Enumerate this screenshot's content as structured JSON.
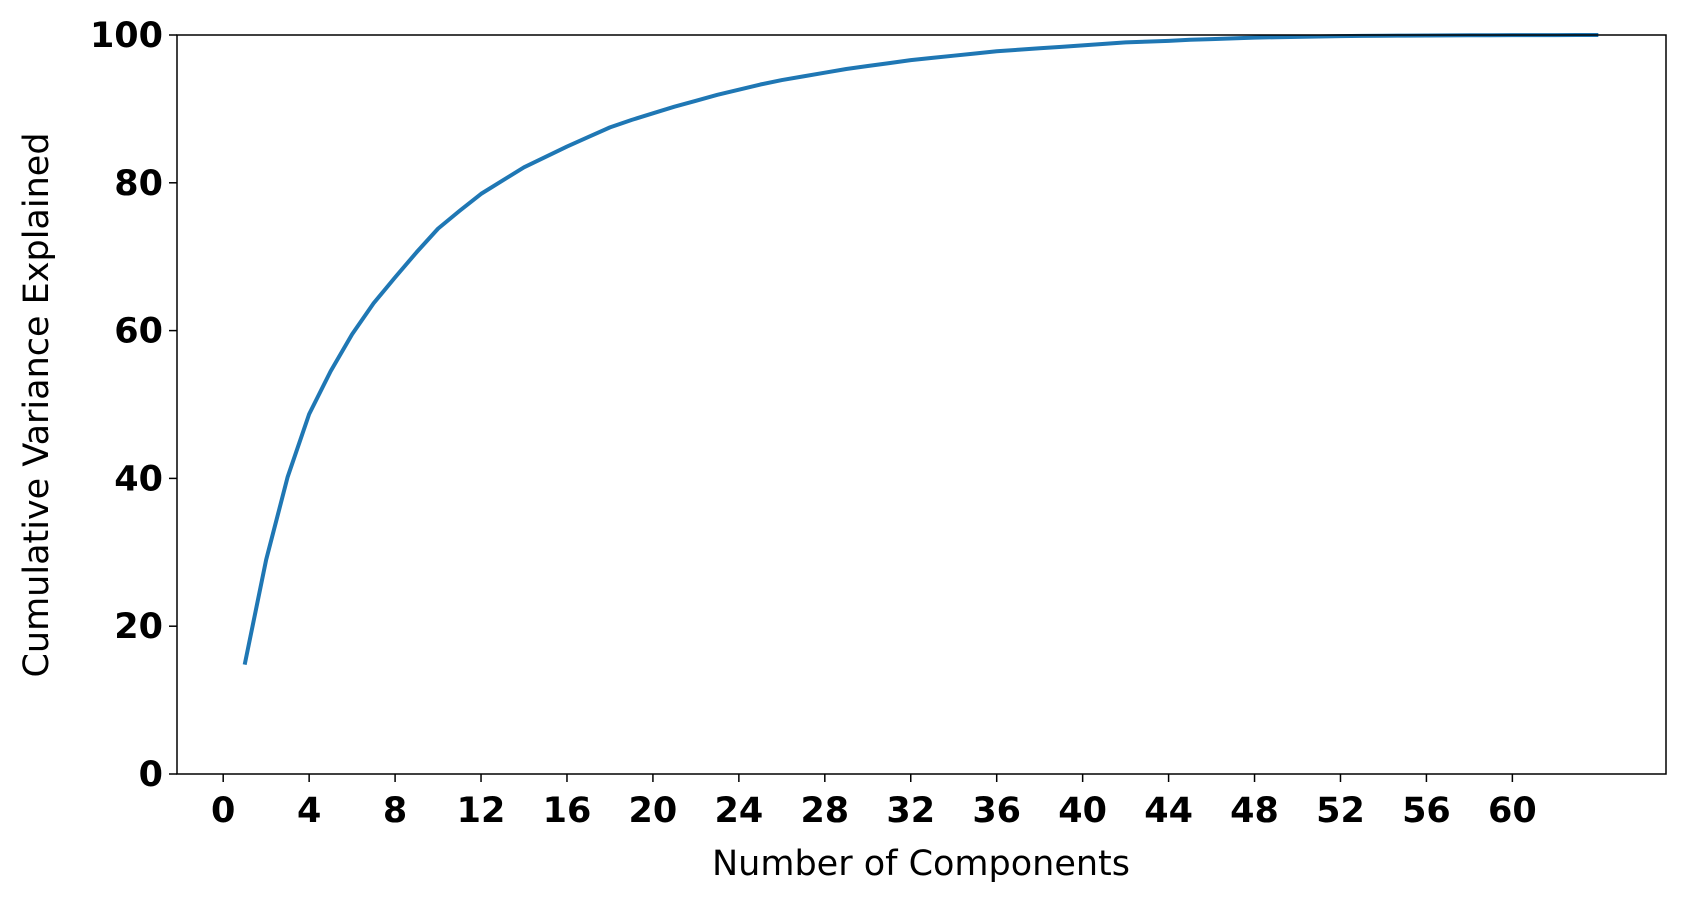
{
  "chart_data": {
    "type": "line",
    "xlabel": "Number of Components",
    "ylabel": "Cumulative Variance Explained",
    "x": [
      1,
      2,
      3,
      4,
      5,
      6,
      7,
      8,
      9,
      10,
      11,
      12,
      13,
      14,
      15,
      16,
      17,
      18,
      19,
      20,
      21,
      22,
      23,
      24,
      25,
      26,
      27,
      28,
      29,
      30,
      31,
      32,
      33,
      34,
      35,
      36,
      37,
      38,
      39,
      40,
      41,
      42,
      43,
      44,
      45,
      46,
      47,
      48,
      49,
      50,
      51,
      52,
      53,
      54,
      55,
      56,
      57,
      58,
      59,
      60,
      61,
      62,
      63,
      64
    ],
    "series": [
      {
        "color": "#1f77b4",
        "values": [
          14.8,
          29,
          40.2,
          48.7,
          54.5,
          59.5,
          63.7,
          67.2,
          70.6,
          73.8,
          76.2,
          78.5,
          80.3,
          82.1,
          83.5,
          84.9,
          86.2,
          87.5,
          88.5,
          89.4,
          90.3,
          91.1,
          91.9,
          92.6,
          93.3,
          93.9,
          94.4,
          94.9,
          95.4,
          95.8,
          96.2,
          96.6,
          96.9,
          97.2,
          97.5,
          97.8,
          98.0,
          98.2,
          98.4,
          98.6,
          98.8,
          99.0,
          99.1,
          99.2,
          99.35,
          99.45,
          99.55,
          99.65,
          99.7,
          99.75,
          99.8,
          99.85,
          99.88,
          99.9,
          99.92,
          99.94,
          99.95,
          99.96,
          99.97,
          99.98,
          99.99,
          99.99,
          100,
          100
        ]
      }
    ],
    "xlim": [
      -2.15,
      67.15
    ],
    "xticks": [
      0,
      4,
      8,
      12,
      16,
      20,
      24,
      28,
      32,
      36,
      40,
      44,
      48,
      52,
      56,
      60
    ],
    "ylim": [
      0,
      100
    ],
    "yticks": [
      0,
      20,
      40,
      60,
      80,
      100
    ],
    "grid": false
  }
}
